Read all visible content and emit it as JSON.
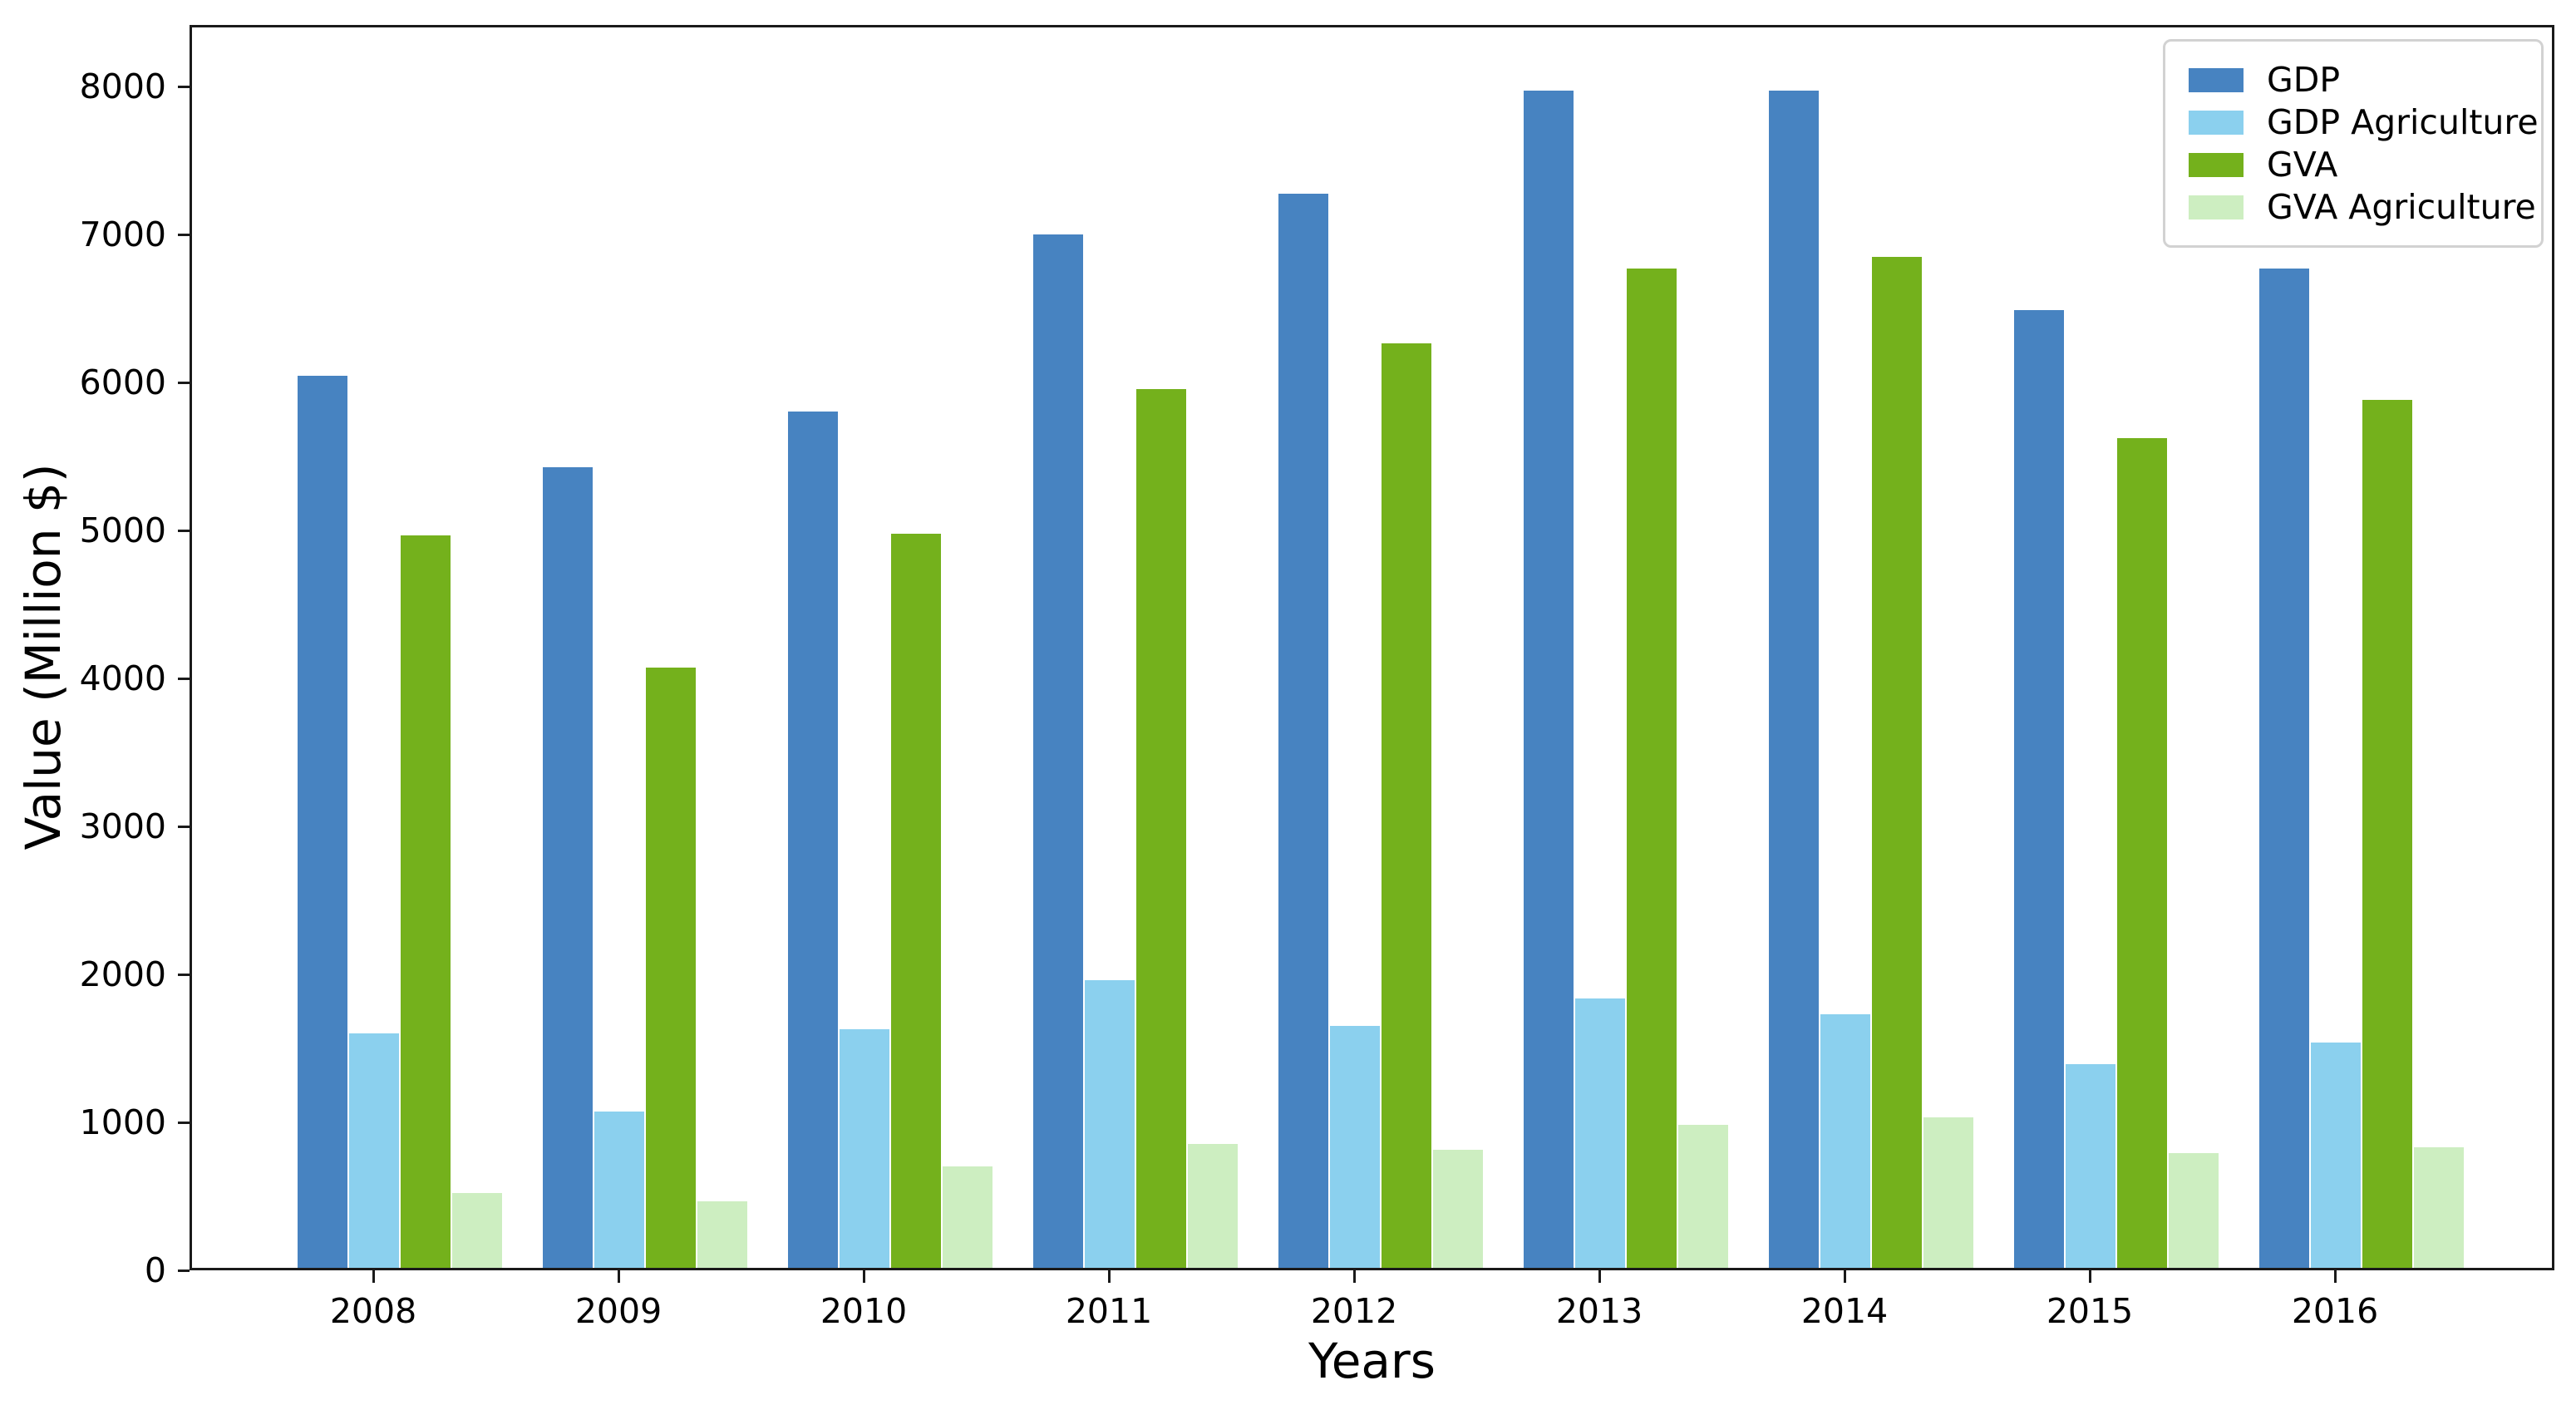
{
  "chart_data": {
    "type": "bar",
    "title": "",
    "xlabel": "Years",
    "ylabel": "Value (Million $)",
    "categories": [
      "2008",
      "2009",
      "2010",
      "2011",
      "2012",
      "2013",
      "2014",
      "2015",
      "2016"
    ],
    "series": [
      {
        "name": "GDP",
        "color": "#4783c1",
        "values": [
          6050,
          5430,
          5810,
          7010,
          7290,
          7990,
          7990,
          6500,
          6780
        ]
      },
      {
        "name": "GDP Agriculture",
        "color": "#8bd0ee",
        "values": [
          1590,
          1060,
          1620,
          1950,
          1640,
          1830,
          1720,
          1380,
          1530
        ]
      },
      {
        "name": "GVA",
        "color": "#74b11c",
        "values": [
          4970,
          4070,
          4980,
          5960,
          6270,
          6780,
          6860,
          5630,
          5890
        ]
      },
      {
        "name": "GVA Agriculture",
        "color": "#cdeec1",
        "values": [
          510,
          450,
          690,
          840,
          800,
          970,
          1020,
          780,
          820
        ]
      }
    ],
    "ylim": [
      0,
      8416
    ],
    "yticks": [
      "0",
      "1000",
      "2000",
      "3000",
      "4000",
      "5000",
      "6000",
      "7000",
      "8000"
    ],
    "legend_position": "upper right",
    "grid": false,
    "spine_color": "#1a1a1a",
    "background_color": "#ffffff"
  }
}
